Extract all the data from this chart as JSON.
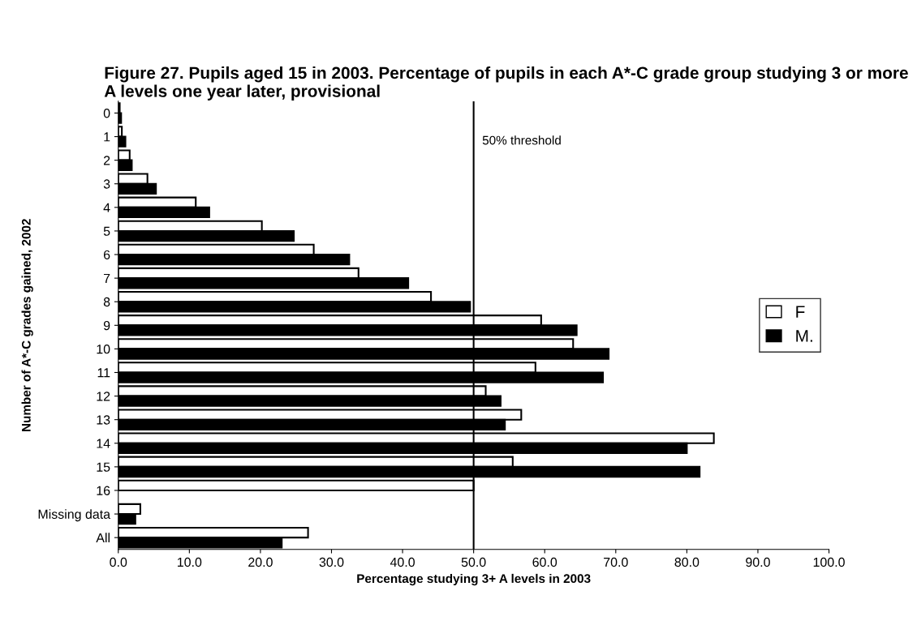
{
  "chart_data": {
    "type": "bar",
    "orientation": "horizontal",
    "title": "Figure 27. Pupils aged 15 in 2003. Percentage of pupils in each A*-C grade group studying 3 or more A levels one year later, provisional",
    "xlabel": "Percentage studying 3+ A levels in 2003",
    "ylabel": "Number of A*-C grades gained, 2002",
    "categories": [
      "0",
      "1",
      "2",
      "3",
      "4",
      "5",
      "6",
      "7",
      "8",
      "9",
      "10",
      "11",
      "12",
      "13",
      "14",
      "15",
      "16",
      "Missing data",
      "All"
    ],
    "series": [
      {
        "name": "F",
        "color": "#ffffff",
        "values": [
          0.2,
          0.5,
          1.6,
          4.1,
          10.9,
          20.2,
          27.5,
          33.8,
          44.0,
          59.5,
          64.0,
          58.7,
          51.7,
          56.7,
          83.8,
          55.5,
          50.0,
          3.1,
          26.7
        ]
      },
      {
        "name": "M.",
        "color": "#000000",
        "values": [
          0.4,
          1.0,
          1.9,
          5.3,
          12.8,
          24.7,
          32.5,
          40.8,
          49.5,
          64.5,
          69.0,
          68.2,
          53.8,
          54.4,
          80.0,
          81.8,
          null,
          2.4,
          23.0
        ]
      }
    ],
    "xlim": [
      0,
      100
    ],
    "xticks": [
      {
        "value": 0,
        "label": "0.0"
      },
      {
        "value": 10,
        "label": "10.0"
      },
      {
        "value": 20,
        "label": "20.0"
      },
      {
        "value": 30,
        "label": "30.0"
      },
      {
        "value": 40,
        "label": "40.0"
      },
      {
        "value": 50,
        "label": "50.0"
      },
      {
        "value": 60,
        "label": "60.0"
      },
      {
        "value": 70,
        "label": "70.0"
      },
      {
        "value": 80,
        "label": "80.0"
      },
      {
        "value": 90,
        "label": "90.0"
      },
      {
        "value": 100,
        "label": "100.0"
      }
    ],
    "ref_lines": [
      {
        "axis": "x",
        "value": 50,
        "label": "50% threshold",
        "color": "#000000"
      }
    ],
    "legend": "right",
    "grid": false
  }
}
